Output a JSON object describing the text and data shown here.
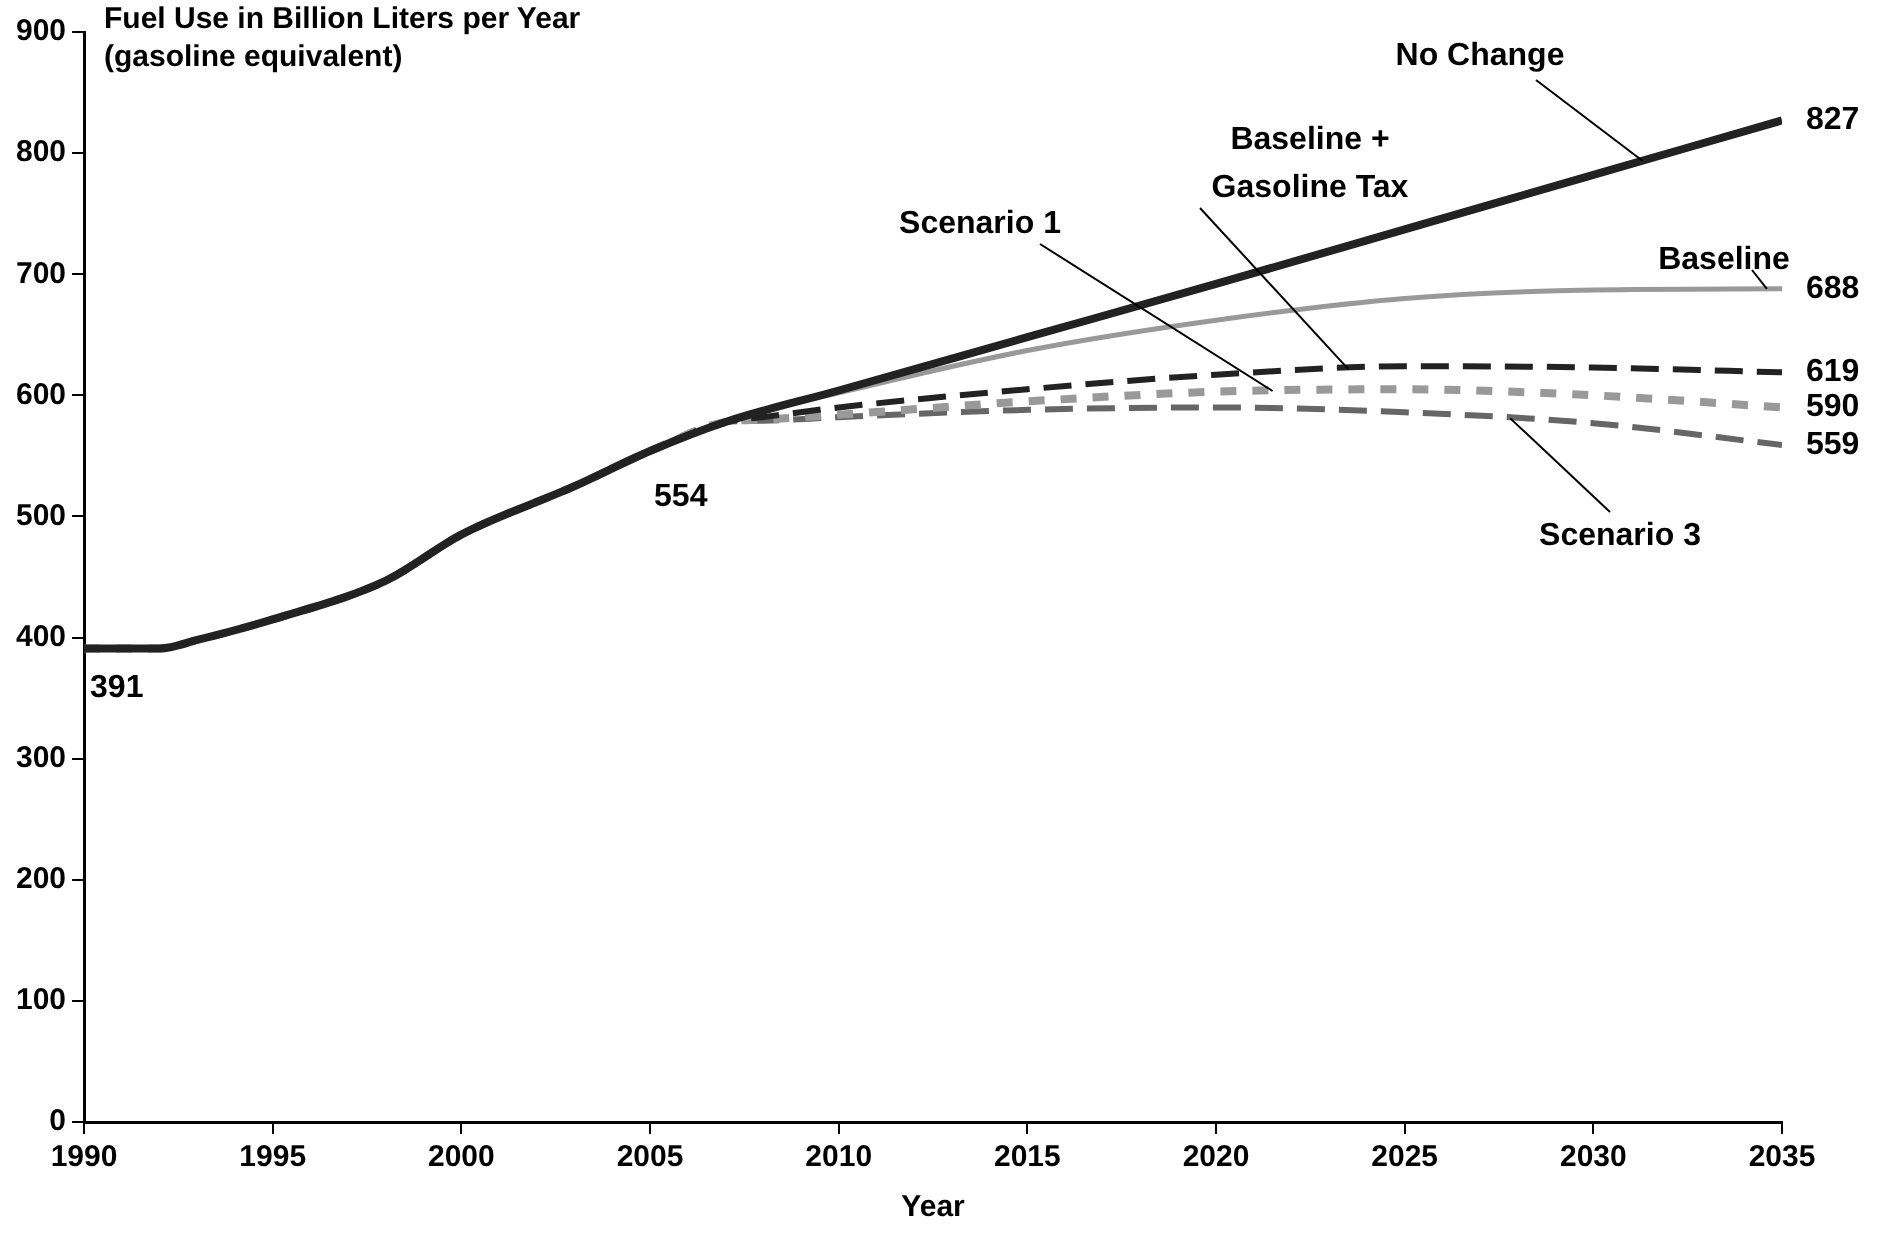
{
  "chart_data": {
    "type": "line",
    "ylabel": "Fuel Use in Billion Liters per Year\n(gasoline equivalent)",
    "xlabel": "Year",
    "xlim": [
      1990,
      2035
    ],
    "xticks": [
      1990,
      1995,
      2000,
      2005,
      2010,
      2015,
      2020,
      2025,
      2030,
      2035
    ],
    "ylim": [
      0,
      900
    ],
    "yticks": [
      0,
      100,
      200,
      300,
      400,
      500,
      600,
      700,
      800,
      900
    ],
    "grid": false,
    "legend": false,
    "marker": "none",
    "series": [
      {
        "name": "No Change",
        "color": "#222222",
        "line_style": "solid",
        "x": [
          1990,
          1992,
          1993,
          1995,
          1998,
          2000,
          2003,
          2005,
          2007,
          2010,
          2015,
          2020,
          2025,
          2030,
          2035
        ],
        "values": [
          391,
          391,
          398,
          415,
          447,
          485,
          525,
          554,
          578,
          604,
          648,
          692,
          737,
          782,
          827
        ]
      },
      {
        "name": "Baseline",
        "color": "#999999",
        "line_style": "solid",
        "x": [
          1990,
          1992,
          1993,
          1995,
          1998,
          2000,
          2003,
          2005,
          2007,
          2010,
          2015,
          2020,
          2025,
          2030,
          2035
        ],
        "values": [
          391,
          391,
          398,
          415,
          447,
          485,
          525,
          554,
          578,
          602,
          637,
          662,
          680,
          687,
          688
        ]
      },
      {
        "name": "Baseline +\nGasoline Tax",
        "color": "#222222",
        "line_style": "dashed",
        "x": [
          1990,
          1992,
          1993,
          1995,
          1998,
          2000,
          2003,
          2005,
          2007,
          2008,
          2010,
          2015,
          2020,
          2025,
          2030,
          2035
        ],
        "values": [
          391,
          391,
          398,
          415,
          447,
          485,
          525,
          554,
          578,
          582,
          590,
          605,
          617,
          624,
          623,
          619
        ]
      },
      {
        "name": "Scenario 1",
        "color": "#999999",
        "line_style": "dotted",
        "x": [
          1990,
          1992,
          1993,
          1995,
          1998,
          2000,
          2003,
          2005,
          2007,
          2008,
          2010,
          2015,
          2020,
          2025,
          2030,
          2035
        ],
        "values": [
          391,
          391,
          398,
          415,
          447,
          485,
          525,
          554,
          578,
          580,
          584,
          595,
          603,
          605,
          600,
          590
        ]
      },
      {
        "name": "Scenario 3",
        "color": "#666666",
        "line_style": "dashed",
        "x": [
          1990,
          1992,
          1993,
          1995,
          1998,
          2000,
          2003,
          2005,
          2007,
          2008,
          2010,
          2015,
          2020,
          2025,
          2030,
          2035
        ],
        "values": [
          391,
          391,
          398,
          415,
          447,
          485,
          525,
          554,
          578,
          579,
          582,
          588,
          590,
          586,
          577,
          559
        ]
      }
    ],
    "annotations": [
      {
        "text": "391",
        "x": 1990,
        "y": 391
      },
      {
        "text": "554",
        "x": 2005,
        "y": 554
      },
      {
        "text": "827",
        "x": 2035,
        "y": 827
      },
      {
        "text": "688",
        "x": 2035,
        "y": 688
      },
      {
        "text": "619",
        "x": 2035,
        "y": 619
      },
      {
        "text": "590",
        "x": 2035,
        "y": 590
      },
      {
        "text": "559",
        "x": 2035,
        "y": 559
      }
    ]
  }
}
